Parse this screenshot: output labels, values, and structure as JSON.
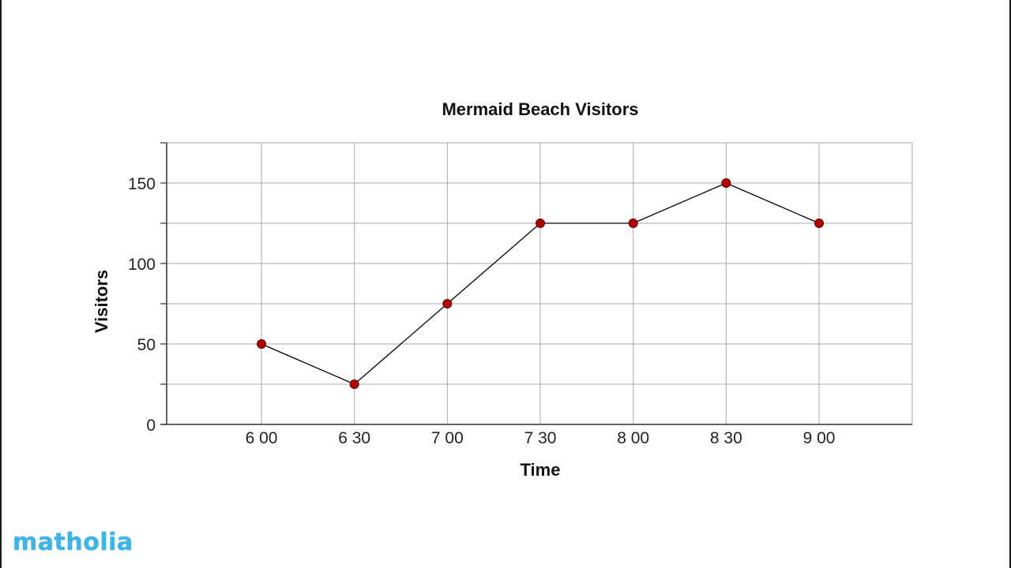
{
  "chart_data": {
    "type": "line",
    "title": "Mermaid Beach Visitors",
    "xlabel": "Time",
    "ylabel": "Visitors",
    "categories": [
      "6 00",
      "6 30",
      "7 00",
      "7 30",
      "8 00",
      "8 30",
      "9 00"
    ],
    "series": [
      {
        "values": [
          50,
          25,
          75,
          125,
          125,
          150,
          125
        ]
      }
    ],
    "ylim": [
      0,
      175
    ],
    "yticks": [
      0,
      50,
      100,
      150
    ],
    "minor_yticks": [
      25,
      75,
      125,
      175
    ],
    "grid": true,
    "colors": {
      "marker": "#b30000",
      "line": "#000000",
      "grid": "#aaaaaa"
    }
  },
  "brand": {
    "logo_text": "matholia"
  }
}
